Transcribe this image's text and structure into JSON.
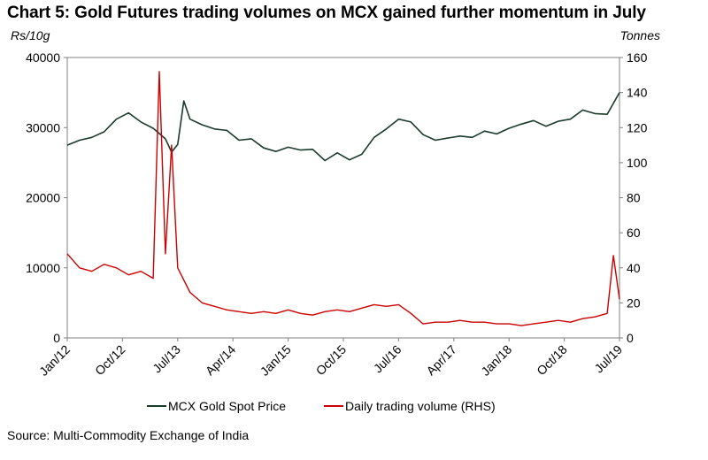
{
  "chart_data": {
    "type": "line",
    "title": "Chart 5: Gold Futures trading volumes on MCX gained further momentum in July",
    "y_left_unit": "Rs/10g",
    "y_right_unit": "Tonnes",
    "y_left_range": [
      0,
      40000
    ],
    "y_right_range": [
      0,
      160
    ],
    "y_left_ticks": [
      "0",
      "10000",
      "20000",
      "30000",
      "40000"
    ],
    "y_right_ticks": [
      "0",
      "20",
      "40",
      "60",
      "80",
      "100",
      "120",
      "140",
      "160"
    ],
    "x_range": [
      "2012-01",
      "2019-07"
    ],
    "x_tick_labels": [
      "Jan/12",
      "Oct/12",
      "Jul/13",
      "Apr/14",
      "Jan/15",
      "Oct/15",
      "Jul/16",
      "Apr/17",
      "Jan/18",
      "Oct/18",
      "Jul/19"
    ],
    "x_tick_months": [
      0,
      9,
      18,
      27,
      36,
      45,
      54,
      63,
      72,
      81,
      90
    ],
    "grid": false,
    "legend_position": "bottom",
    "series": [
      {
        "name": "MCX Gold Spot Price",
        "axis": "left",
        "color": "#1a3a2a",
        "points": [
          [
            "2012-01",
            27500
          ],
          [
            "2012-03",
            28200
          ],
          [
            "2012-05",
            28600
          ],
          [
            "2012-07",
            29400
          ],
          [
            "2012-09",
            31200
          ],
          [
            "2012-11",
            32100
          ],
          [
            "2013-01",
            30800
          ],
          [
            "2013-03",
            29900
          ],
          [
            "2013-05",
            28400
          ],
          [
            "2013-06",
            26500
          ],
          [
            "2013-07",
            27600
          ],
          [
            "2013-08",
            33800
          ],
          [
            "2013-09",
            31200
          ],
          [
            "2013-11",
            30400
          ],
          [
            "2014-01",
            29800
          ],
          [
            "2014-03",
            29600
          ],
          [
            "2014-05",
            28200
          ],
          [
            "2014-07",
            28400
          ],
          [
            "2014-09",
            27100
          ],
          [
            "2014-11",
            26600
          ],
          [
            "2015-01",
            27200
          ],
          [
            "2015-03",
            26800
          ],
          [
            "2015-05",
            26900
          ],
          [
            "2015-07",
            25300
          ],
          [
            "2015-09",
            26400
          ],
          [
            "2015-11",
            25400
          ],
          [
            "2016-01",
            26200
          ],
          [
            "2016-03",
            28600
          ],
          [
            "2016-05",
            29800
          ],
          [
            "2016-07",
            31200
          ],
          [
            "2016-09",
            30800
          ],
          [
            "2016-11",
            29000
          ],
          [
            "2017-01",
            28200
          ],
          [
            "2017-03",
            28500
          ],
          [
            "2017-05",
            28800
          ],
          [
            "2017-07",
            28600
          ],
          [
            "2017-09",
            29500
          ],
          [
            "2017-11",
            29100
          ],
          [
            "2018-01",
            29900
          ],
          [
            "2018-03",
            30500
          ],
          [
            "2018-05",
            31000
          ],
          [
            "2018-07",
            30200
          ],
          [
            "2018-09",
            30900
          ],
          [
            "2018-11",
            31200
          ],
          [
            "2019-01",
            32500
          ],
          [
            "2019-03",
            32000
          ],
          [
            "2019-05",
            31900
          ],
          [
            "2019-07",
            35000
          ]
        ]
      },
      {
        "name": "Daily trading volume (RHS)",
        "axis": "right",
        "color": "#cc0000",
        "points": [
          [
            "2012-01",
            48
          ],
          [
            "2012-03",
            40
          ],
          [
            "2012-05",
            38
          ],
          [
            "2012-07",
            42
          ],
          [
            "2012-09",
            40
          ],
          [
            "2012-11",
            36
          ],
          [
            "2013-01",
            38
          ],
          [
            "2013-03",
            34
          ],
          [
            "2013-04",
            152
          ],
          [
            "2013-05",
            48
          ],
          [
            "2013-06",
            110
          ],
          [
            "2013-07",
            40
          ],
          [
            "2013-09",
            26
          ],
          [
            "2013-11",
            20
          ],
          [
            "2014-01",
            18
          ],
          [
            "2014-03",
            16
          ],
          [
            "2014-05",
            15
          ],
          [
            "2014-07",
            14
          ],
          [
            "2014-09",
            15
          ],
          [
            "2014-11",
            14
          ],
          [
            "2015-01",
            16
          ],
          [
            "2015-03",
            14
          ],
          [
            "2015-05",
            13
          ],
          [
            "2015-07",
            15
          ],
          [
            "2015-09",
            16
          ],
          [
            "2015-11",
            15
          ],
          [
            "2016-01",
            17
          ],
          [
            "2016-03",
            19
          ],
          [
            "2016-05",
            18
          ],
          [
            "2016-07",
            19
          ],
          [
            "2016-09",
            14
          ],
          [
            "2016-11",
            8
          ],
          [
            "2017-01",
            9
          ],
          [
            "2017-03",
            9
          ],
          [
            "2017-05",
            10
          ],
          [
            "2017-07",
            9
          ],
          [
            "2017-09",
            9
          ],
          [
            "2017-11",
            8
          ],
          [
            "2018-01",
            8
          ],
          [
            "2018-03",
            7
          ],
          [
            "2018-05",
            8
          ],
          [
            "2018-07",
            9
          ],
          [
            "2018-09",
            10
          ],
          [
            "2018-11",
            9
          ],
          [
            "2019-01",
            11
          ],
          [
            "2019-03",
            12
          ],
          [
            "2019-05",
            14
          ],
          [
            "2019-06",
            47
          ],
          [
            "2019-07",
            22
          ]
        ]
      }
    ]
  },
  "source": "Source: Multi-Commodity Exchange of India"
}
